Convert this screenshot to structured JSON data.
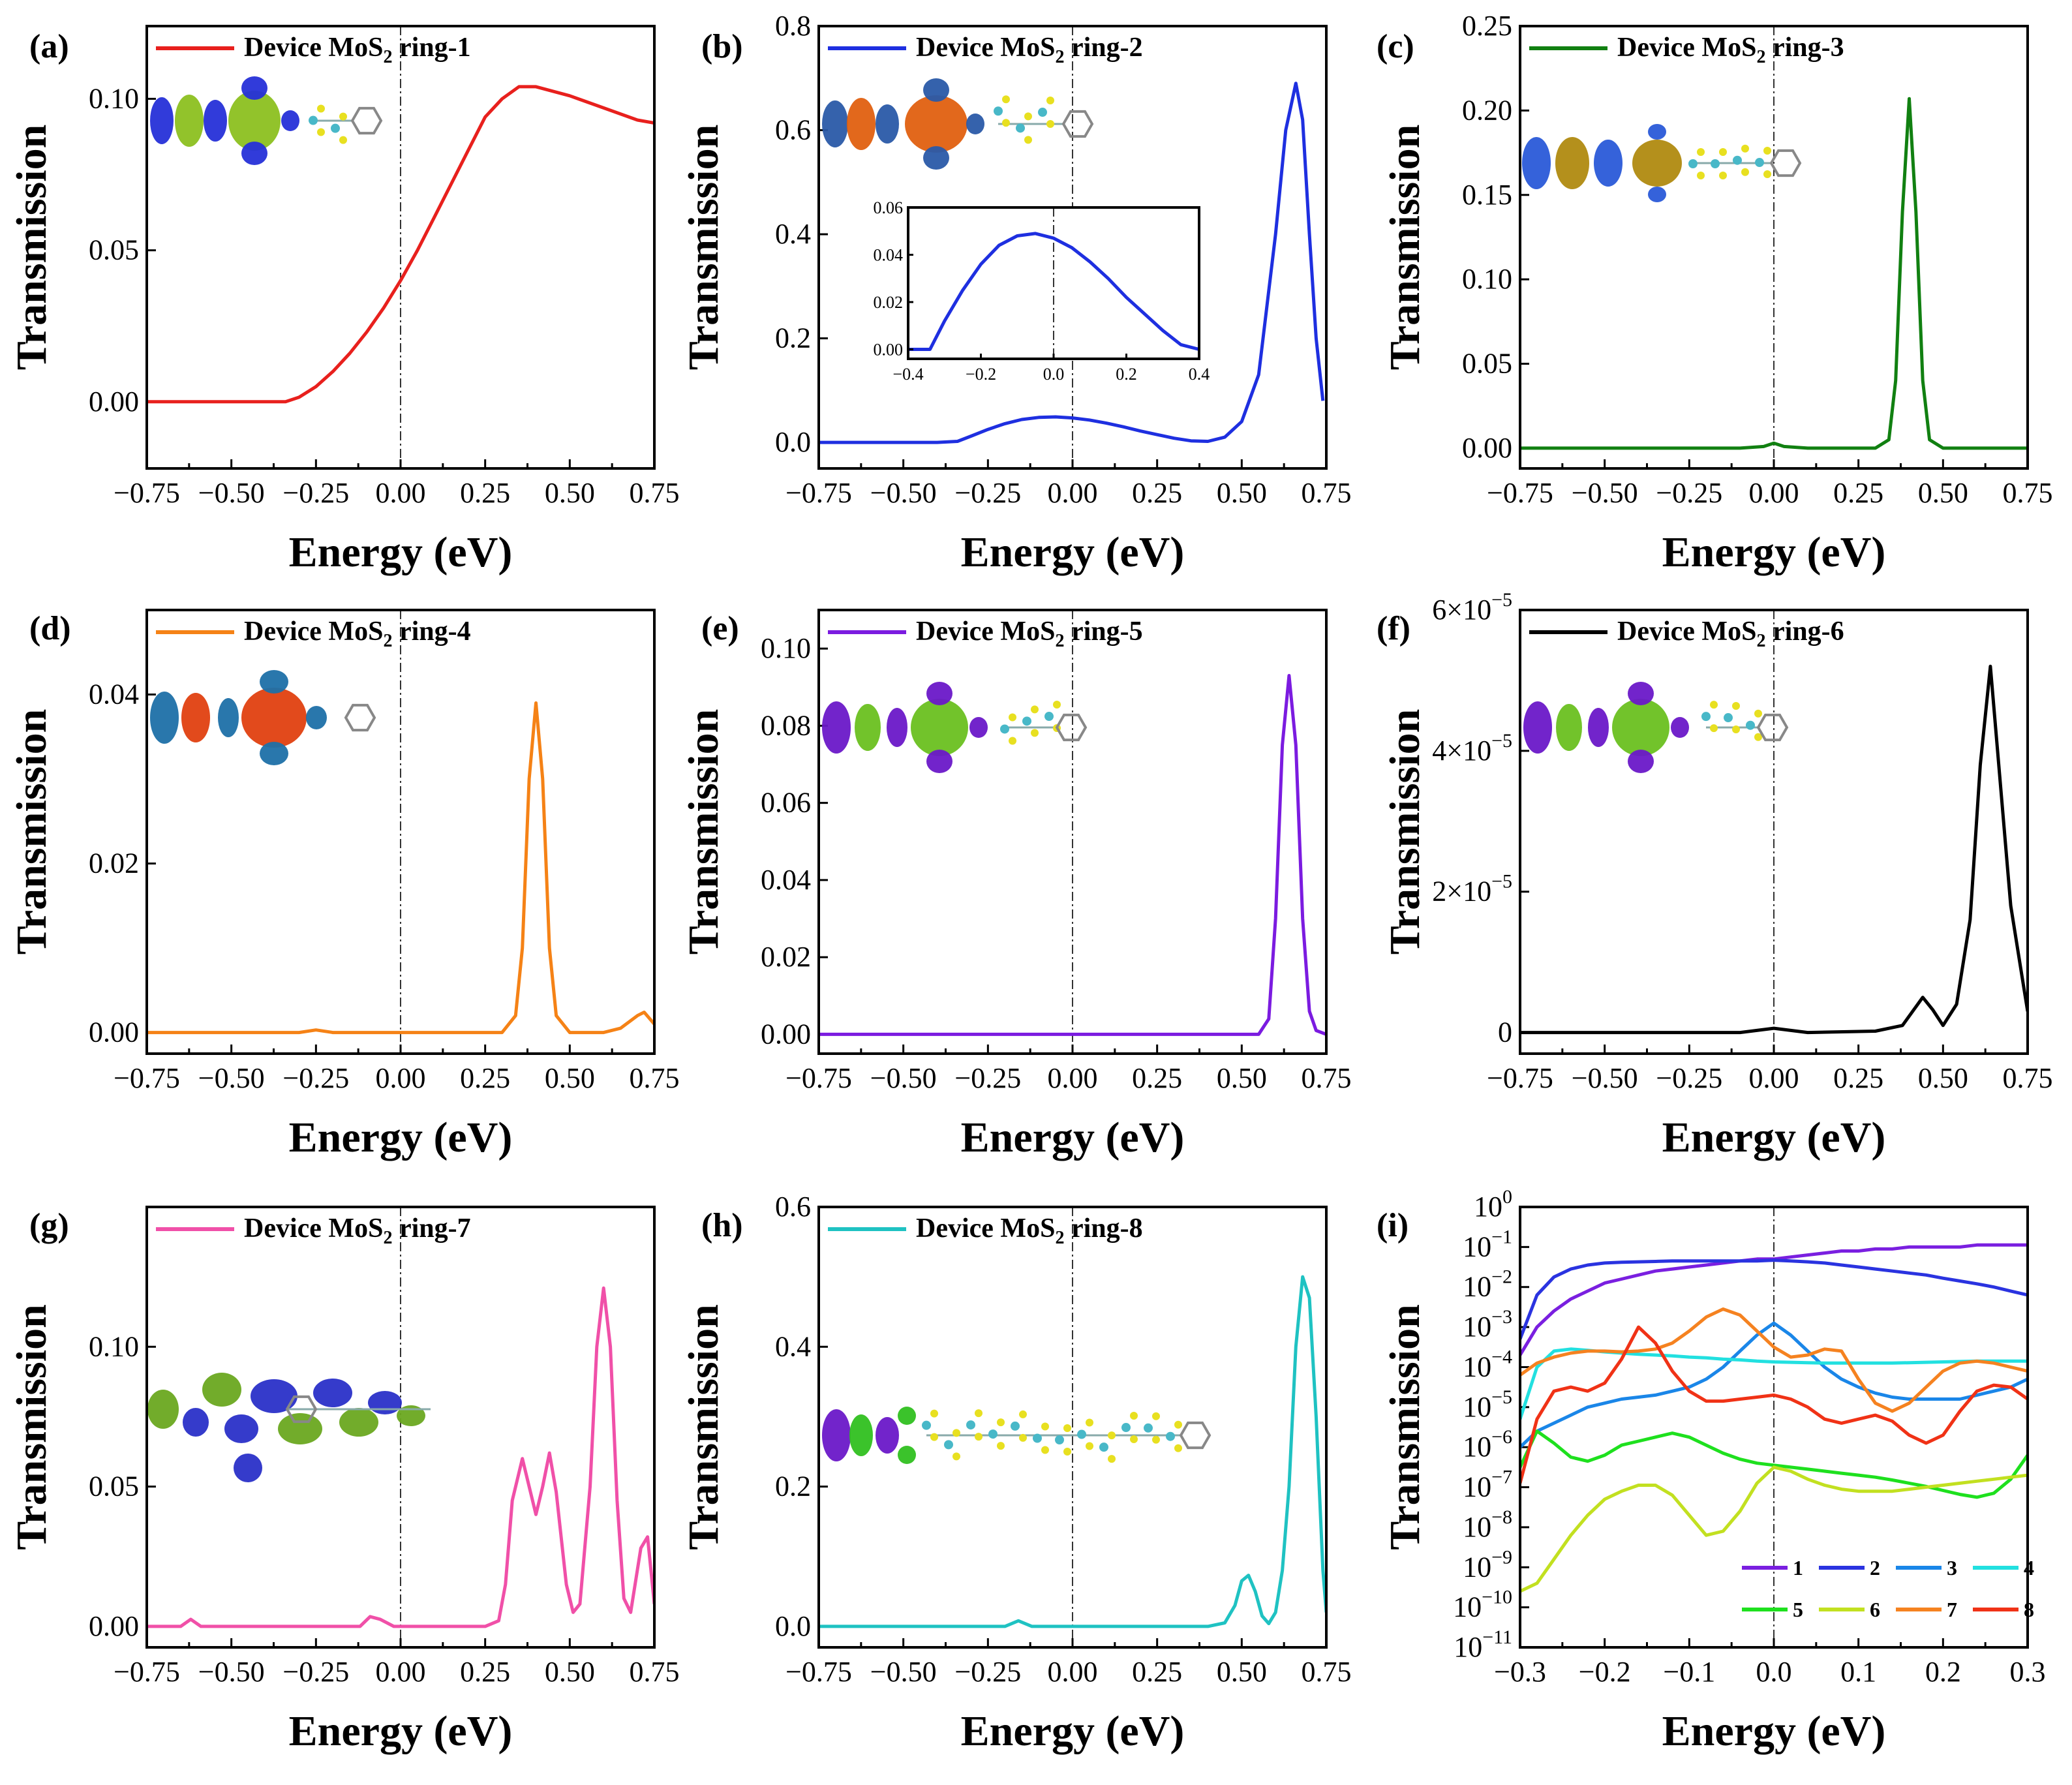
{
  "figure": {
    "x_label": "Energy (eV)",
    "y_label": "Transmission"
  },
  "chart_data": [
    {
      "id": "a",
      "panel_label": "(a)",
      "type": "line",
      "color": "#e8201d",
      "legend": {
        "pre": "Device MoS",
        "sub": "2",
        "post": " ring-1"
      },
      "xlabel": "Energy (eV)",
      "ylabel": "Transmission",
      "xlim": [
        -0.75,
        0.75
      ],
      "ylim": [
        -0.022,
        0.124
      ],
      "x_ticks": [
        "-0.75",
        "-0.50",
        "-0.25",
        "0.00",
        "0.25",
        "0.50",
        "0.75"
      ],
      "y_ticks": [
        {
          "v": 0.0,
          "t": "0.00"
        },
        {
          "v": 0.05,
          "t": "0.05"
        },
        {
          "v": 0.1,
          "t": "0.10"
        }
      ],
      "x": [
        -0.75,
        -0.5,
        -0.34,
        -0.3,
        -0.25,
        -0.2,
        -0.15,
        -0.1,
        -0.05,
        0,
        0.05,
        0.1,
        0.15,
        0.2,
        0.25,
        0.3,
        0.35,
        0.4,
        0.5,
        0.6,
        0.7,
        0.75
      ],
      "y": [
        0,
        0,
        0,
        0.0015,
        0.005,
        0.01,
        0.016,
        0.023,
        0.031,
        0.04,
        0.05,
        0.061,
        0.072,
        0.083,
        0.094,
        0.1,
        0.104,
        0.104,
        0.101,
        0.097,
        0.093,
        0.092
      ]
    },
    {
      "id": "b",
      "panel_label": "(b)",
      "type": "line",
      "color": "#1e2fe0",
      "legend": {
        "pre": "Device MoS",
        "sub": "2",
        "post": " ring-2"
      },
      "xlabel": "Energy (eV)",
      "ylabel": "Transmission",
      "xlim": [
        -0.75,
        0.75
      ],
      "ylim": [
        -0.05,
        0.8
      ],
      "x_ticks": [
        "-0.75",
        "-0.50",
        "-0.25",
        "0.00",
        "0.25",
        "0.50",
        "0.75"
      ],
      "y_ticks": [
        {
          "v": 0.0,
          "t": "0.0"
        },
        {
          "v": 0.2,
          "t": "0.2"
        },
        {
          "v": 0.4,
          "t": "0.4"
        },
        {
          "v": 0.6,
          "t": "0.6"
        },
        {
          "v": 0.8,
          "t": "0.8"
        }
      ],
      "x": [
        -0.75,
        -0.4,
        -0.34,
        -0.3,
        -0.25,
        -0.2,
        -0.15,
        -0.1,
        -0.05,
        0,
        0.05,
        0.1,
        0.15,
        0.2,
        0.25,
        0.3,
        0.35,
        0.4,
        0.45,
        0.5,
        0.55,
        0.6,
        0.63,
        0.66,
        0.68,
        0.7,
        0.72,
        0.74
      ],
      "y": [
        0,
        0,
        0.002,
        0.012,
        0.025,
        0.036,
        0.044,
        0.048,
        0.049,
        0.047,
        0.043,
        0.037,
        0.03,
        0.022,
        0.015,
        0.008,
        0.003,
        0.002,
        0.01,
        0.04,
        0.13,
        0.4,
        0.6,
        0.69,
        0.62,
        0.4,
        0.2,
        0.08
      ],
      "inset": {
        "xlim": [
          -0.4,
          0.4
        ],
        "ylim": [
          -0.004,
          0.06
        ],
        "x_ticks": [
          "-0.4",
          "-0.2",
          "0.0",
          "0.2",
          "0.4"
        ],
        "y_ticks": [
          {
            "v": 0.0,
            "t": "0.00"
          },
          {
            "v": 0.02,
            "t": "0.02"
          },
          {
            "v": 0.04,
            "t": "0.04"
          },
          {
            "v": 0.06,
            "t": "0.06"
          }
        ],
        "x": [
          -0.4,
          -0.34,
          -0.3,
          -0.25,
          -0.2,
          -0.15,
          -0.1,
          -0.05,
          0,
          0.05,
          0.1,
          0.15,
          0.2,
          0.25,
          0.3,
          0.35,
          0.4
        ],
        "y": [
          0,
          0,
          0.012,
          0.025,
          0.036,
          0.044,
          0.048,
          0.049,
          0.047,
          0.043,
          0.037,
          0.03,
          0.022,
          0.015,
          0.008,
          0.002,
          0
        ]
      }
    },
    {
      "id": "c",
      "panel_label": "(c)",
      "type": "line",
      "color": "#118011",
      "legend": {
        "pre": "Device MoS",
        "sub": "2",
        "post": " ring-3"
      },
      "xlabel": "Energy (eV)",
      "ylabel": "Transmission",
      "xlim": [
        -0.75,
        0.75
      ],
      "ylim": [
        -0.012,
        0.25
      ],
      "x_ticks": [
        "-0.75",
        "-0.50",
        "-0.25",
        "0.00",
        "0.25",
        "0.50",
        "0.75"
      ],
      "y_ticks": [
        {
          "v": 0.0,
          "t": "0.00"
        },
        {
          "v": 0.05,
          "t": "0.05"
        },
        {
          "v": 0.1,
          "t": "0.10"
        },
        {
          "v": 0.15,
          "t": "0.15"
        },
        {
          "v": 0.2,
          "t": "0.20"
        },
        {
          "v": 0.25,
          "t": "0.25"
        }
      ],
      "x": [
        -0.75,
        -0.1,
        -0.03,
        0,
        0.03,
        0.1,
        0.3,
        0.34,
        0.36,
        0.38,
        0.4,
        0.42,
        0.44,
        0.46,
        0.5,
        0.75
      ],
      "y": [
        0,
        0,
        0.001,
        0.003,
        0.001,
        0,
        0,
        0.005,
        0.04,
        0.14,
        0.207,
        0.14,
        0.04,
        0.005,
        0,
        0
      ]
    },
    {
      "id": "d",
      "panel_label": "(d)",
      "type": "line",
      "color": "#f58216",
      "legend": {
        "pre": "Device MoS",
        "sub": "2",
        "post": " ring-4"
      },
      "xlabel": "Energy (eV)",
      "ylabel": "Transmission",
      "xlim": [
        -0.75,
        0.75
      ],
      "ylim": [
        -0.0025,
        0.05
      ],
      "x_ticks": [
        "-0.75",
        "-0.50",
        "-0.25",
        "0.00",
        "0.25",
        "0.50",
        "0.75"
      ],
      "y_ticks": [
        {
          "v": 0.0,
          "t": "0.00"
        },
        {
          "v": 0.02,
          "t": "0.02"
        },
        {
          "v": 0.04,
          "t": "0.04"
        }
      ],
      "x": [
        -0.75,
        -0.3,
        -0.25,
        -0.2,
        0,
        0.3,
        0.34,
        0.36,
        0.38,
        0.4,
        0.42,
        0.44,
        0.46,
        0.5,
        0.6,
        0.65,
        0.7,
        0.72,
        0.75
      ],
      "y": [
        0,
        0,
        0.0003,
        0,
        0,
        0,
        0.002,
        0.01,
        0.03,
        0.039,
        0.03,
        0.01,
        0.002,
        0,
        0,
        0.0005,
        0.002,
        0.0024,
        0.001
      ]
    },
    {
      "id": "e",
      "panel_label": "(e)",
      "type": "line",
      "color": "#7b1be0",
      "legend": {
        "pre": "Device MoS",
        "sub": "2",
        "post": " ring-5"
      },
      "xlabel": "Energy (eV)",
      "ylabel": "Transmission",
      "xlim": [
        -0.75,
        0.75
      ],
      "ylim": [
        -0.005,
        0.11
      ],
      "x_ticks": [
        "-0.75",
        "-0.50",
        "-0.25",
        "0.00",
        "0.25",
        "0.50",
        "0.75"
      ],
      "y_ticks": [
        {
          "v": 0.0,
          "t": "0.00"
        },
        {
          "v": 0.02,
          "t": "0.02"
        },
        {
          "v": 0.04,
          "t": "0.04"
        },
        {
          "v": 0.06,
          "t": "0.06"
        },
        {
          "v": 0.08,
          "t": "0.08"
        },
        {
          "v": 0.1,
          "t": "0.10"
        }
      ],
      "x": [
        -0.75,
        0.55,
        0.58,
        0.6,
        0.62,
        0.64,
        0.66,
        0.68,
        0.7,
        0.72,
        0.75
      ],
      "y": [
        0,
        0,
        0.004,
        0.03,
        0.075,
        0.093,
        0.075,
        0.03,
        0.006,
        0.001,
        0
      ]
    },
    {
      "id": "f",
      "panel_label": "(f)",
      "type": "line",
      "color": "#000000",
      "legend": {
        "pre": "Device MoS",
        "sub": "2",
        "post": " ring-6"
      },
      "xlabel": "Energy (eV)",
      "ylabel": "Transmission",
      "xlim": [
        -0.75,
        0.75
      ],
      "ylim": [
        -3e-06,
        6e-05
      ],
      "x_ticks": [
        "-0.75",
        "-0.50",
        "-0.25",
        "0.00",
        "0.25",
        "0.50",
        "0.75"
      ],
      "y_ticks": [
        {
          "v": 0,
          "t": "0"
        },
        {
          "v": 2e-05,
          "t": "2×10"
        },
        {
          "v": 4e-05,
          "t": "4×10"
        },
        {
          "v": 6e-05,
          "t": "6×10"
        }
      ],
      "y_tick_exp": "−5",
      "x": [
        -0.75,
        -0.1,
        0,
        0.1,
        0.3,
        0.38,
        0.41,
        0.44,
        0.47,
        0.5,
        0.54,
        0.58,
        0.61,
        0.64,
        0.67,
        0.7,
        0.73,
        0.75
      ],
      "y": [
        0,
        0,
        6e-07,
        0,
        2e-07,
        1e-06,
        3e-06,
        5e-06,
        3.2e-06,
        1e-06,
        4e-06,
        1.6e-05,
        3.8e-05,
        5.2e-05,
        3.5e-05,
        1.8e-05,
        9e-06,
        3e-06
      ]
    },
    {
      "id": "g",
      "panel_label": "(g)",
      "type": "line",
      "color": "#f050a8",
      "legend": {
        "pre": "Device MoS",
        "sub": "2",
        "post": " ring-7"
      },
      "xlabel": "Energy (eV)",
      "ylabel": "Transmission",
      "xlim": [
        -0.75,
        0.75
      ],
      "ylim": [
        -0.0075,
        0.15
      ],
      "x_ticks": [
        "-0.75",
        "-0.50",
        "-0.25",
        "0.00",
        "0.25",
        "0.50",
        "0.75"
      ],
      "y_ticks": [
        {
          "v": 0.0,
          "t": "0.00"
        },
        {
          "v": 0.05,
          "t": "0.05"
        },
        {
          "v": 0.1,
          "t": "0.10"
        }
      ],
      "x": [
        -0.75,
        -0.65,
        -0.62,
        -0.59,
        -0.3,
        -0.12,
        -0.09,
        -0.06,
        -0.02,
        0.25,
        0.29,
        0.31,
        0.33,
        0.36,
        0.38,
        0.4,
        0.42,
        0.44,
        0.46,
        0.49,
        0.51,
        0.53,
        0.56,
        0.58,
        0.6,
        0.62,
        0.64,
        0.66,
        0.68,
        0.71,
        0.73,
        0.75
      ],
      "y": [
        0,
        0,
        0.0025,
        0,
        0,
        0,
        0.0035,
        0.0025,
        0,
        0,
        0.002,
        0.015,
        0.045,
        0.06,
        0.05,
        0.04,
        0.05,
        0.062,
        0.048,
        0.015,
        0.005,
        0.008,
        0.05,
        0.1,
        0.121,
        0.1,
        0.045,
        0.01,
        0.005,
        0.028,
        0.032,
        0.008
      ]
    },
    {
      "id": "h",
      "panel_label": "(h)",
      "type": "line",
      "color": "#1fc2c2",
      "legend": {
        "pre": "Device MoS",
        "sub": "2",
        "post": " ring-8"
      },
      "xlabel": "Energy (eV)",
      "ylabel": "Transmission",
      "xlim": [
        -0.75,
        0.75
      ],
      "ylim": [
        -0.03,
        0.6
      ],
      "x_ticks": [
        "-0.75",
        "-0.50",
        "-0.25",
        "0.00",
        "0.25",
        "0.50",
        "0.75"
      ],
      "y_ticks": [
        {
          "v": 0.0,
          "t": "0.0"
        },
        {
          "v": 0.2,
          "t": "0.2"
        },
        {
          "v": 0.4,
          "t": "0.4"
        },
        {
          "v": 0.6,
          "t": "0.6"
        }
      ],
      "x": [
        -0.75,
        -0.2,
        -0.16,
        -0.12,
        0.4,
        0.45,
        0.48,
        0.5,
        0.52,
        0.54,
        0.56,
        0.58,
        0.6,
        0.62,
        0.64,
        0.66,
        0.68,
        0.7,
        0.72,
        0.74,
        0.75
      ],
      "y": [
        0,
        0,
        0.008,
        0,
        0,
        0.005,
        0.03,
        0.065,
        0.073,
        0.05,
        0.015,
        0.004,
        0.02,
        0.08,
        0.2,
        0.4,
        0.5,
        0.47,
        0.3,
        0.08,
        0.02
      ]
    },
    {
      "id": "i",
      "panel_label": "(i)",
      "type": "line",
      "yscale": "log",
      "xlabel": "Energy (eV)",
      "ylabel": "Transmission",
      "xlim": [
        -0.3,
        0.3
      ],
      "ylim_log10": [
        -11,
        0
      ],
      "x_ticks": [
        "-0.3",
        "-0.2",
        "-0.1",
        "0.0",
        "0.1",
        "0.2",
        "0.3"
      ],
      "y_ticks_log": [
        {
          "e": 0,
          "t": "0"
        },
        {
          "e": -1,
          "t": "−1"
        },
        {
          "e": -2,
          "t": "−2"
        },
        {
          "e": -3,
          "t": "−3"
        },
        {
          "e": -4,
          "t": "−4"
        },
        {
          "e": -5,
          "t": "−5"
        },
        {
          "e": -6,
          "t": "−6"
        },
        {
          "e": -7,
          "t": "−7"
        },
        {
          "e": -8,
          "t": "−8"
        },
        {
          "e": -9,
          "t": "−9"
        },
        {
          "e": -10,
          "t": "−10"
        },
        {
          "e": -11,
          "t": "−11"
        }
      ],
      "y_tick_base": "10",
      "x": [
        -0.3,
        -0.28,
        -0.26,
        -0.24,
        -0.22,
        -0.2,
        -0.18,
        -0.16,
        -0.14,
        -0.12,
        -0.1,
        -0.08,
        -0.06,
        -0.04,
        -0.02,
        0,
        0.02,
        0.04,
        0.06,
        0.08,
        0.1,
        0.12,
        0.14,
        0.16,
        0.18,
        0.2,
        0.22,
        0.24,
        0.26,
        0.28,
        0.3
      ],
      "series": [
        {
          "name": "1",
          "color": "#7a1fe0",
          "log10": [
            -3.7,
            -3.0,
            -2.6,
            -2.3,
            -2.1,
            -1.9,
            -1.8,
            -1.7,
            -1.6,
            -1.55,
            -1.5,
            -1.45,
            -1.4,
            -1.35,
            -1.3,
            -1.3,
            -1.25,
            -1.2,
            -1.15,
            -1.1,
            -1.1,
            -1.05,
            -1.05,
            -1.0,
            -1.0,
            -1.0,
            -1.0,
            -0.95,
            -0.95,
            -0.95,
            -0.95
          ]
        },
        {
          "name": "2",
          "color": "#2a33e0",
          "log10": [
            -3.3,
            -2.2,
            -1.75,
            -1.55,
            -1.45,
            -1.4,
            -1.38,
            -1.37,
            -1.36,
            -1.35,
            -1.35,
            -1.35,
            -1.35,
            -1.35,
            -1.35,
            -1.33,
            -1.35,
            -1.37,
            -1.4,
            -1.45,
            -1.5,
            -1.55,
            -1.6,
            -1.65,
            -1.7,
            -1.78,
            -1.85,
            -1.92,
            -2.0,
            -2.1,
            -2.2
          ]
        },
        {
          "name": "3",
          "color": "#1a86e8",
          "log10": [
            -6.0,
            -5.6,
            -5.4,
            -5.2,
            -5.0,
            -4.9,
            -4.8,
            -4.75,
            -4.7,
            -4.6,
            -4.5,
            -4.3,
            -4.0,
            -3.6,
            -3.2,
            -2.9,
            -3.2,
            -3.6,
            -4.0,
            -4.3,
            -4.5,
            -4.65,
            -4.75,
            -4.8,
            -4.8,
            -4.8,
            -4.8,
            -4.7,
            -4.6,
            -4.5,
            -4.3
          ]
        },
        {
          "name": "4",
          "color": "#22e0e0",
          "log10": [
            -5.3,
            -4.0,
            -3.6,
            -3.55,
            -3.58,
            -3.62,
            -3.65,
            -3.68,
            -3.7,
            -3.72,
            -3.75,
            -3.77,
            -3.8,
            -3.82,
            -3.85,
            -3.87,
            -3.88,
            -3.89,
            -3.9,
            -3.9,
            -3.9,
            -3.9,
            -3.9,
            -3.89,
            -3.88,
            -3.87,
            -3.86,
            -3.85,
            -3.85,
            -3.85,
            -3.85
          ]
        },
        {
          "name": "5",
          "color": "#1ee01e",
          "log10": [
            -6.5,
            -5.6,
            -5.9,
            -6.25,
            -6.35,
            -6.2,
            -5.95,
            -5.85,
            -5.75,
            -5.65,
            -5.75,
            -5.95,
            -6.15,
            -6.3,
            -6.4,
            -6.45,
            -6.5,
            -6.55,
            -6.6,
            -6.65,
            -6.7,
            -6.75,
            -6.82,
            -6.9,
            -6.98,
            -7.08,
            -7.18,
            -7.25,
            -7.15,
            -6.8,
            -6.2
          ]
        },
        {
          "name": "6",
          "color": "#c2e020",
          "log10": [
            -9.6,
            -9.4,
            -8.8,
            -8.2,
            -7.7,
            -7.3,
            -7.1,
            -6.95,
            -6.95,
            -7.2,
            -7.7,
            -8.2,
            -8.1,
            -7.6,
            -6.9,
            -6.5,
            -6.6,
            -6.8,
            -6.95,
            -7.05,
            -7.1,
            -7.1,
            -7.1,
            -7.05,
            -7.0,
            -6.95,
            -6.9,
            -6.85,
            -6.8,
            -6.75,
            -6.7
          ]
        },
        {
          "name": "7",
          "color": "#f58220",
          "log10": [
            -4.2,
            -3.9,
            -3.75,
            -3.65,
            -3.6,
            -3.6,
            -3.62,
            -3.6,
            -3.55,
            -3.4,
            -3.1,
            -2.75,
            -2.55,
            -2.7,
            -3.1,
            -3.5,
            -3.75,
            -3.7,
            -3.55,
            -3.6,
            -4.3,
            -4.9,
            -5.1,
            -4.9,
            -4.5,
            -4.1,
            -3.9,
            -3.85,
            -3.9,
            -4.0,
            -4.1
          ]
        },
        {
          "name": "8",
          "color": "#f03216",
          "log10": [
            -6.9,
            -5.3,
            -4.6,
            -4.5,
            -4.6,
            -4.4,
            -3.8,
            -3.0,
            -3.4,
            -4.1,
            -4.6,
            -4.85,
            -4.85,
            -4.8,
            -4.75,
            -4.7,
            -4.8,
            -5.0,
            -5.3,
            -5.4,
            -5.3,
            -5.2,
            -5.35,
            -5.7,
            -5.9,
            -5.7,
            -5.1,
            -4.6,
            -4.45,
            -4.5,
            -4.8
          ]
        }
      ]
    }
  ]
}
